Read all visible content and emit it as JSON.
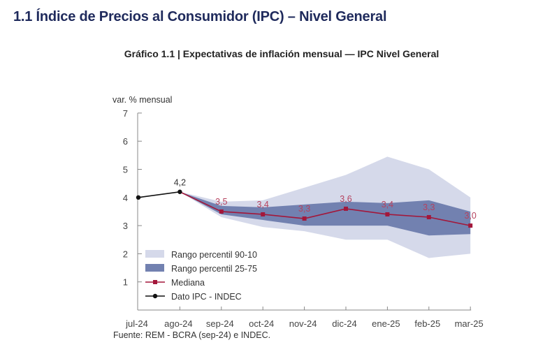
{
  "page": {
    "title": "1.1 Índice de Precios al Consumidor (IPC) – Nivel General",
    "source": "Fuente: REM - BCRA (sep-24) e INDEC."
  },
  "colors": {
    "title": "#1f2a5c",
    "band_90_10": "#d5d9ea",
    "band_25_75": "#7281b0",
    "median": "#a3173a",
    "median_label": "#b5425f",
    "ipc": "#111111",
    "axis": "#888888"
  },
  "chart_data": {
    "type": "line",
    "title": "Gráfico 1.1 | Expectativas de inflación mensual — IPC Nivel General",
    "xlabel": "",
    "ylabel": "var. % mensual",
    "ylim": [
      0,
      7
    ],
    "yticks": [
      1,
      2,
      3,
      4,
      5,
      6,
      7
    ],
    "categories": [
      "jul-24",
      "ago-24",
      "sep-24",
      "oct-24",
      "nov-24",
      "dic-24",
      "ene-25",
      "feb-25",
      "mar-25"
    ],
    "grid": false,
    "legend_position": "bottom-left",
    "legend": [
      {
        "key": "band_90_10",
        "label": "Rango percentil 90-10",
        "kind": "band"
      },
      {
        "key": "band_25_75",
        "label": "Rango percentil 25-75",
        "kind": "band"
      },
      {
        "key": "median",
        "label": "Mediana",
        "kind": "line"
      },
      {
        "key": "ipc",
        "label": "Dato IPC - INDEC",
        "kind": "line"
      }
    ],
    "series": [
      {
        "name": "Dato IPC - INDEC",
        "key": "ipc",
        "start_index": 0,
        "values": [
          4.0,
          4.2
        ],
        "labels": [
          null,
          "4,2"
        ]
      },
      {
        "name": "Mediana",
        "key": "median",
        "start_index": 1,
        "values": [
          4.2,
          3.5,
          3.4,
          3.25,
          3.6,
          3.4,
          3.3,
          3.0
        ],
        "labels": [
          null,
          "3,5",
          "3,4",
          "3,3",
          "3,6",
          "3,4",
          "3,3",
          "3,0"
        ]
      },
      {
        "name": "Rango percentil 90-10",
        "key": "band_90_10",
        "start_index": 1,
        "upper": [
          4.2,
          3.85,
          3.9,
          4.35,
          4.8,
          5.45,
          5.0,
          4.0
        ],
        "lower": [
          4.2,
          3.3,
          2.95,
          2.8,
          2.5,
          2.5,
          1.85,
          2.0
        ]
      },
      {
        "name": "Rango percentil 25-75",
        "key": "band_25_75",
        "start_index": 1,
        "upper": [
          4.2,
          3.7,
          3.65,
          3.75,
          3.85,
          3.8,
          3.9,
          3.5
        ],
        "lower": [
          4.2,
          3.4,
          3.2,
          3.0,
          3.0,
          3.0,
          2.65,
          2.7
        ]
      }
    ]
  }
}
